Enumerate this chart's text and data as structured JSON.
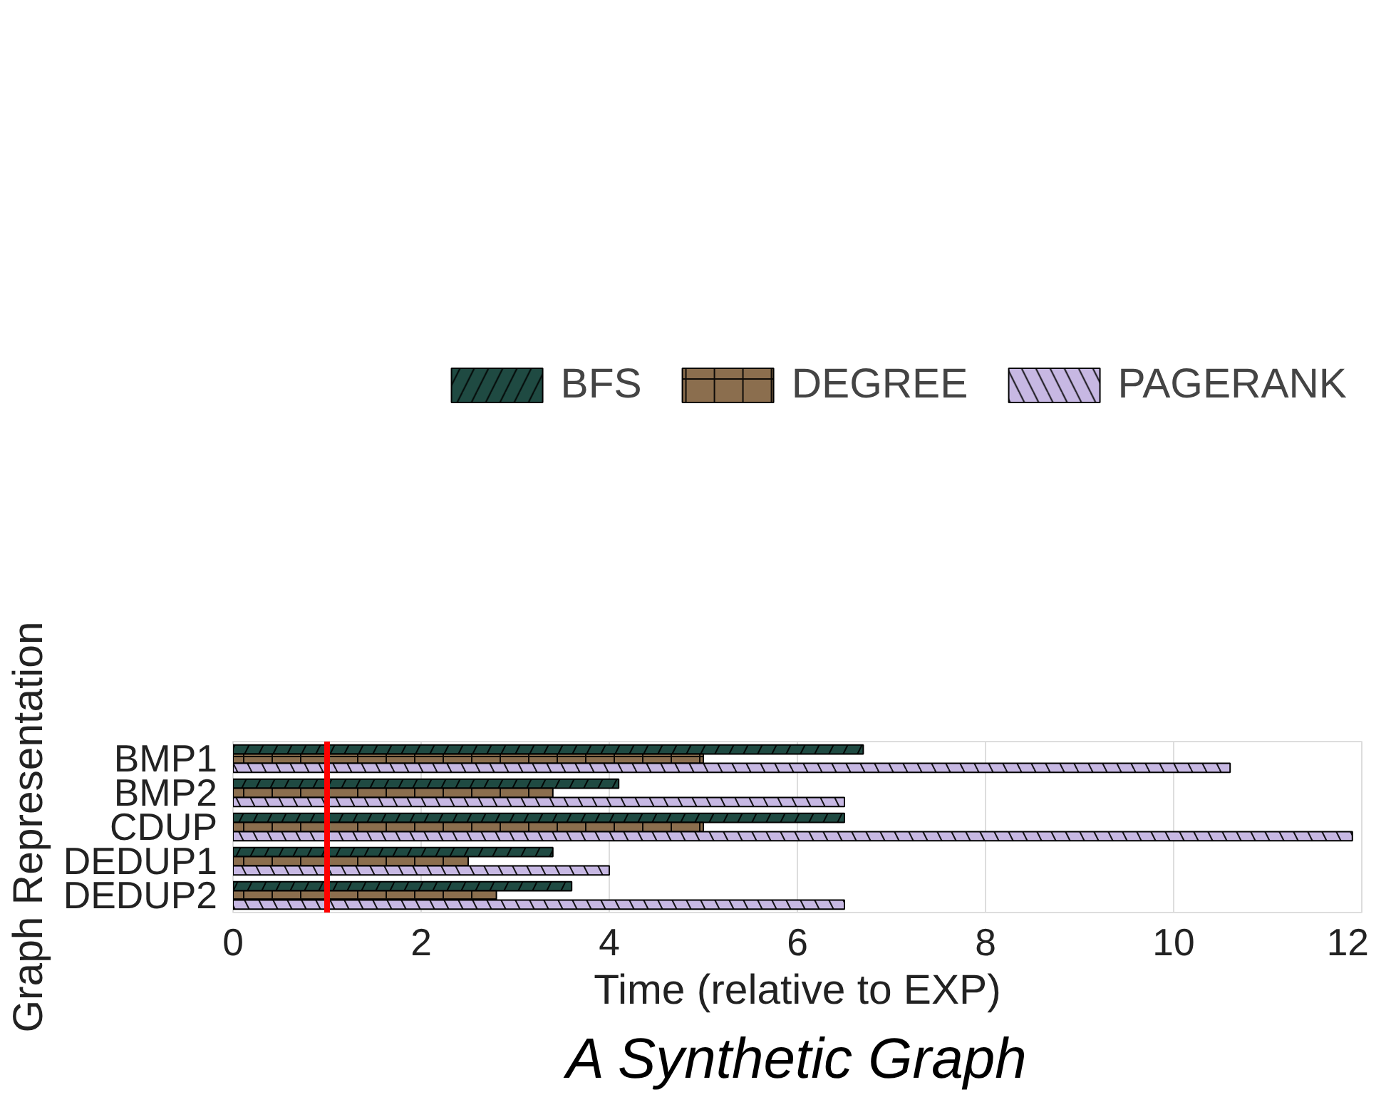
{
  "chart_data": {
    "type": "bar",
    "orientation": "horizontal",
    "title": "A Synthetic Graph",
    "xlabel": "Time (relative to EXP)",
    "ylabel": "Graph Representation",
    "categories": [
      "BMP1",
      "BMP2",
      "CDUP",
      "DEDUP1",
      "DEDUP2"
    ],
    "series": [
      {
        "name": "BFS",
        "color": "#1f4a42",
        "values": [
          6.7,
          4.1,
          6.5,
          3.4,
          3.6
        ]
      },
      {
        "name": "DEGREE",
        "color": "#8b6e4e",
        "values": [
          5.0,
          3.4,
          5.0,
          2.5,
          2.8
        ]
      },
      {
        "name": "PAGERANK",
        "color": "#c7b8e3",
        "values": [
          10.6,
          6.5,
          11.9,
          4.0,
          6.5
        ]
      }
    ],
    "xlim": [
      0,
      12
    ],
    "xticks": [
      0,
      2,
      4,
      6,
      8,
      10,
      12
    ],
    "grid": "x",
    "legend": "top",
    "ref_lines": [
      {
        "axis": "x",
        "value": 1,
        "color": "#ff0000"
      }
    ]
  }
}
